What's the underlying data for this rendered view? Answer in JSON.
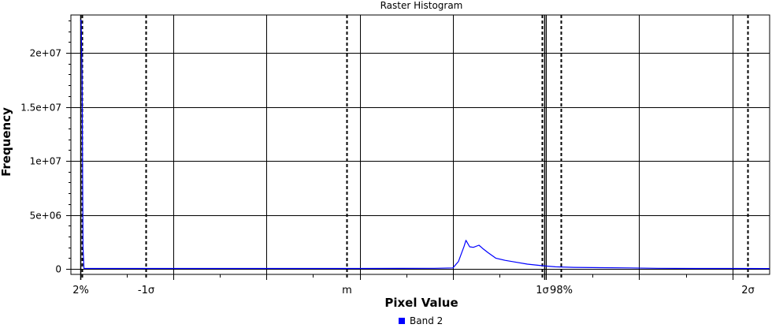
{
  "chart_data": {
    "type": "line",
    "title": "Raster Histogram",
    "xlabel": "Pixel Value",
    "ylabel": "Frequency",
    "xlim": [
      -0.05,
      3.7
    ],
    "ylim": [
      -500000,
      23500000
    ],
    "grid": true,
    "yticks": [
      {
        "value": 0,
        "label": "0"
      },
      {
        "value": 5000000,
        "label": "5e+06"
      },
      {
        "value": 10000000,
        "label": "1e+07"
      },
      {
        "value": 15000000,
        "label": "1.5e+07"
      },
      {
        "value": 20000000,
        "label": "2e+07"
      }
    ],
    "x_gridlines": [
      0.5,
      1.0,
      1.5,
      2.0,
      2.5,
      3.0,
      3.5
    ],
    "x_minor_ticks": [
      0.25,
      0.75,
      1.25,
      1.75,
      2.25,
      2.75,
      3.25
    ],
    "markers": [
      {
        "label": "2%",
        "value": 0.0,
        "style": "solid"
      },
      {
        "label": "",
        "value": 0.01,
        "style": "dashed"
      },
      {
        "label": "-1σ",
        "value": 0.35,
        "style": "dashed"
      },
      {
        "label": "m",
        "value": 1.43,
        "style": "dashed"
      },
      {
        "label": "1σ",
        "value": 2.48,
        "style": "dashed"
      },
      {
        "label": "",
        "value": 2.49,
        "style": "solid"
      },
      {
        "label": "98%",
        "value": 2.58,
        "style": "dashed"
      },
      {
        "label": "2σ",
        "value": 3.58,
        "style": "dashed"
      }
    ],
    "series": [
      {
        "name": "Band 2",
        "color": "#0000ff",
        "x": [
          0.0,
          0.005,
          0.01,
          0.015,
          0.02,
          0.03,
          0.3,
          0.6,
          1.0,
          1.5,
          1.9,
          2.0,
          2.03,
          2.06,
          2.07,
          2.09,
          2.11,
          2.14,
          2.16,
          2.19,
          2.23,
          2.28,
          2.33,
          2.4,
          2.48,
          2.55,
          2.65,
          2.8,
          2.95,
          3.1,
          3.3,
          3.5,
          3.7
        ],
        "values": [
          23000000,
          23000000,
          18000000,
          2000000,
          50000,
          50000,
          50000,
          50000,
          50000,
          50000,
          60000,
          100000,
          700000,
          2100000,
          2650000,
          2050000,
          2000000,
          2200000,
          1900000,
          1500000,
          1000000,
          800000,
          650000,
          450000,
          300000,
          200000,
          150000,
          120000,
          100000,
          60000,
          50000,
          50000,
          40000
        ]
      }
    ]
  }
}
